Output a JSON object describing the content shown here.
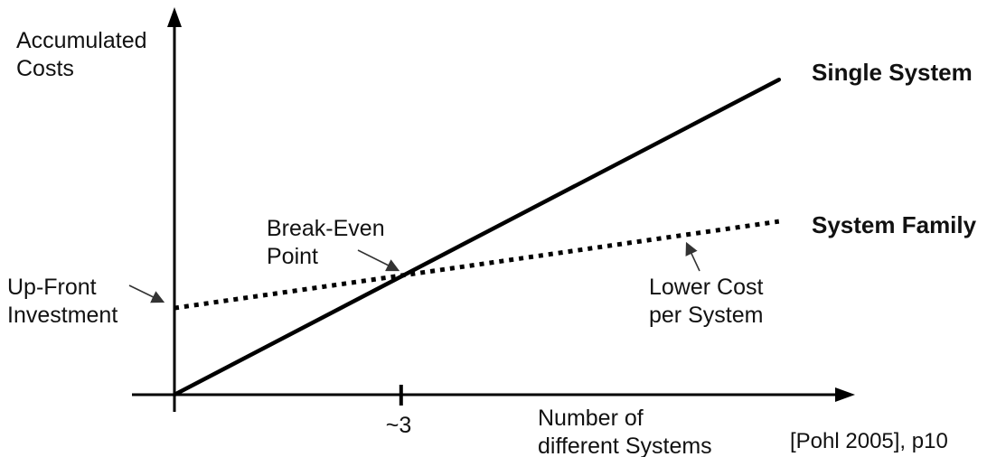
{
  "chart_data": {
    "type": "line",
    "title": "",
    "xlabel": "Number of different Systems",
    "ylabel": "Accumulated Costs",
    "x_range": [
      0,
      8.5
    ],
    "y_range": [
      0,
      9.5
    ],
    "grid": false,
    "legend_position": "end-of-line labels",
    "x_ticks": [
      {
        "value": 3,
        "label": "~3"
      }
    ],
    "series": [
      {
        "name": "Single System",
        "style": "solid",
        "x": [
          0,
          8
        ],
        "y": [
          0,
          8
        ]
      },
      {
        "name": "System Family",
        "style": "dotted",
        "x": [
          0,
          8
        ],
        "y": [
          2.2,
          4.4
        ]
      }
    ],
    "annotations": [
      {
        "label": "Up-Front Investment",
        "points_to": {
          "x": 0,
          "y": 2.2
        }
      },
      {
        "label": "Break-Even Point",
        "points_to": {
          "x": 3,
          "y": 3
        }
      },
      {
        "label": "Lower Cost per System",
        "points_to": {
          "x": 6.8,
          "y": 4.05
        }
      }
    ]
  },
  "labels": {
    "y_axis": "Accumulated\nCosts",
    "x_axis": "Number of\ndifferent Systems",
    "upfront": "Up-Front\nInvestment",
    "break_even": "Break-Even\nPoint",
    "lower_cost": "Lower Cost\nper System",
    "single_system": "Single System",
    "system_family": "System Family",
    "citation": "[Pohl 2005], p10"
  },
  "colors": {
    "line": "#000000",
    "text": "#111111",
    "background": "#ffffff"
  }
}
